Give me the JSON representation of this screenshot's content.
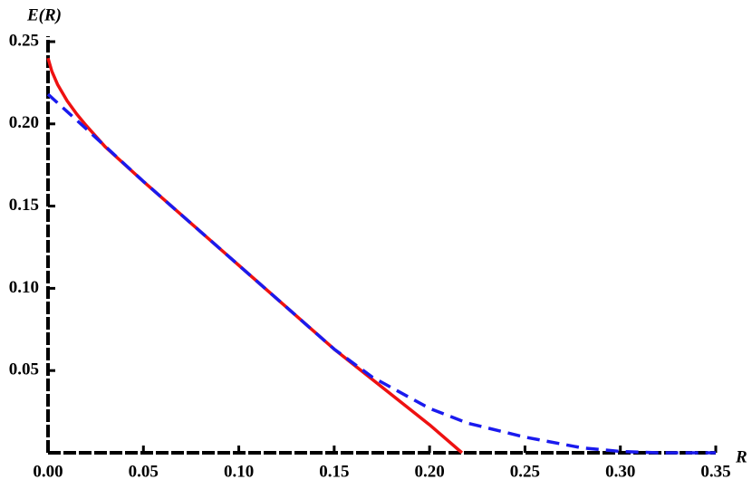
{
  "chart_data": {
    "type": "line",
    "x_label": "R",
    "y_label": "E(R)",
    "xlim": [
      0,
      0.35
    ],
    "ylim": [
      0,
      0.25
    ],
    "xticks": [
      {
        "value": 0,
        "label": "0.00"
      },
      0.05,
      {
        "value": 0.1,
        "label": "0.10"
      },
      0.15,
      {
        "value": 0.2,
        "label": "0.20"
      },
      0.25,
      {
        "value": 0.3,
        "label": "0.30"
      },
      0.35
    ],
    "yticks": [
      0.05,
      {
        "value": 0.1,
        "label": "0.10"
      },
      0.15,
      {
        "value": 0.2,
        "label": "0.20"
      },
      0.25
    ],
    "series": [
      {
        "color": "#ee1111",
        "dashed": false,
        "x": [
          0,
          0.002,
          0.005,
          0.01,
          0.015,
          0.02,
          0.03,
          0.05,
          0.1,
          0.15,
          0.2,
          0.217
        ],
        "values": [
          0.24,
          0.232,
          0.224,
          0.214,
          0.206,
          0.199,
          0.186,
          0.165,
          0.114,
          0.063,
          0.017,
          0
        ]
      },
      {
        "color": "#1a1aee",
        "dashed": true,
        "x": [
          0,
          0.02,
          0.05,
          0.1,
          0.15,
          0.17,
          0.2,
          0.22,
          0.25,
          0.28,
          0.3,
          0.32,
          0.35
        ],
        "values": [
          0.218,
          0.197,
          0.165,
          0.114,
          0.063,
          0.046,
          0.027,
          0.018,
          0.0095,
          0.003,
          0.0008,
          0,
          0
        ]
      }
    ]
  }
}
